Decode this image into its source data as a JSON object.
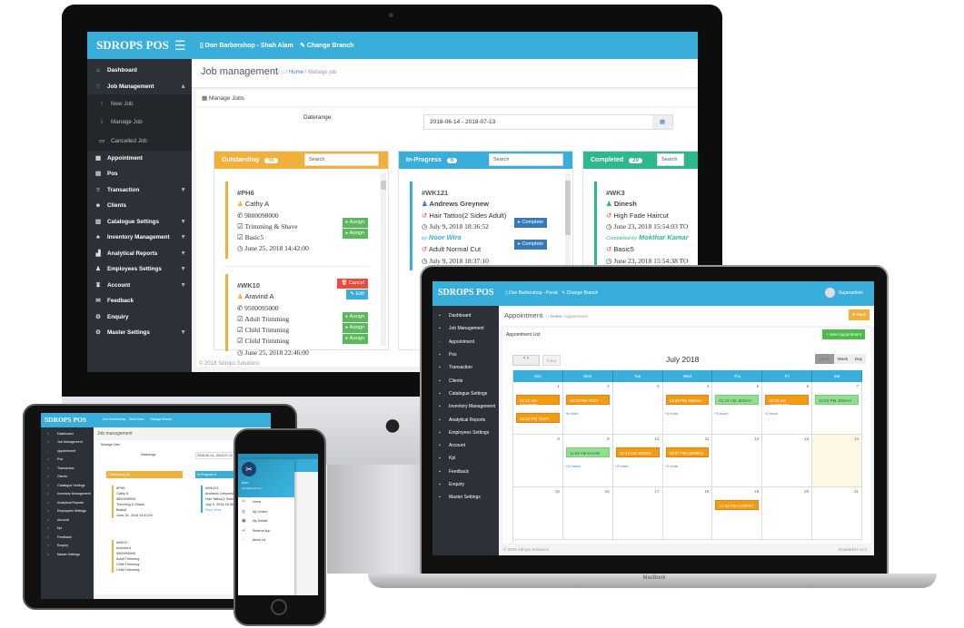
{
  "brand": "SDROPS POS",
  "imac": {
    "branch": "Don Barbershop - Shah Alam",
    "change_branch": "Change Branch",
    "page_title": "Job management",
    "breadcrumb": {
      "home": "Home",
      "current": "Manage job"
    },
    "panel_title": "Manage Jobs",
    "daterange_label": "Daterange:",
    "daterange_value": "2018-06-14 - 2018-07-13",
    "footer": "© 2018 Sdrops Solutions",
    "sidebar": [
      {
        "label": "Dashboard",
        "icon": "home-icon",
        "g": "⌂"
      },
      {
        "label": "Job Management",
        "icon": "list-icon",
        "g": "≡",
        "caret": "▲"
      },
      {
        "label": "New Job",
        "icon": "list-icon",
        "g": "⁞",
        "sub": true
      },
      {
        "label": "Manage Job",
        "icon": "list-icon",
        "g": "⁞",
        "sub": true
      },
      {
        "label": "Cancelled Job",
        "icon": "calendar-icon",
        "g": "▭",
        "sub": true
      },
      {
        "label": "Appointment",
        "icon": "grid-icon",
        "g": "▦"
      },
      {
        "label": "Pos",
        "icon": "calculator-icon",
        "g": "▤"
      },
      {
        "label": "Transaction",
        "icon": "list-icon",
        "g": "≡",
        "caret": "▼"
      },
      {
        "label": "Clients",
        "icon": "users-icon",
        "g": "☻"
      },
      {
        "label": "Catalogue Settings",
        "icon": "book-icon",
        "g": "▥",
        "caret": "▼"
      },
      {
        "label": "Inventory Management",
        "icon": "cubes-icon",
        "g": "♣",
        "caret": "▼"
      },
      {
        "label": "Analytical Reports",
        "icon": "chart-icon",
        "g": "▟",
        "caret": "▼"
      },
      {
        "label": "Employees Settings",
        "icon": "user-icon",
        "g": "♟",
        "caret": "▼"
      },
      {
        "label": "Account",
        "icon": "bank-icon",
        "g": "♜",
        "caret": "▼"
      },
      {
        "label": "Feedback",
        "icon": "comments-icon",
        "g": "✉"
      },
      {
        "label": "Enquiry",
        "icon": "gear-icon",
        "g": "⚙"
      },
      {
        "label": "Master Settings",
        "icon": "gear-icon",
        "g": "⚙",
        "caret": "▼"
      }
    ],
    "columns": {
      "outstanding": {
        "title": "Outstanding",
        "count": "66",
        "search": "Search",
        "color": "#f0b03a"
      },
      "inprogress": {
        "title": "In-Progress",
        "count": "6",
        "search": "Search",
        "color": "#3aaedb"
      },
      "completed": {
        "title": "Completed",
        "count": "29",
        "search": "Search",
        "color": "#2eb88e"
      }
    },
    "jobs": {
      "ph6": {
        "id": "#PH6",
        "name": "Cathy A",
        "phone": "9800098000",
        "services": [
          "Trimming & Shave",
          "Basic5"
        ],
        "time": "June 25, 2018 14:42:00"
      },
      "wk10": {
        "id": "#WK10",
        "name": "Aravind A",
        "phone": "9500095000",
        "services": [
          "Adult Trimming",
          "Child Trimming",
          "Child Trimming"
        ],
        "time": "June 25, 2018 22:46:00"
      },
      "wk121": {
        "id": "#WK121",
        "name": "Andrews Greynew",
        "service1": "Hair Tattoo(2 Sides Adult)",
        "time1": "July 9, 2018 18:36:52",
        "by_prefix": "by",
        "by": "Noor Wira",
        "service2": "Adult Normal Cut",
        "time2": "July 9, 2018 18:37:10"
      },
      "wk3": {
        "id": "#WK3",
        "name": "Dinesh",
        "service1": "High Fade Haircut",
        "time1": "June 23, 2018 15:54:03 TO",
        "by_prefix": "Completed by",
        "by": "Mokthar Kamar",
        "service2": "Basic5",
        "time2": "June 23, 2018 15:54:38 TO"
      }
    },
    "buttons": {
      "assign": "▸ Assign",
      "complete": "▸ Complete",
      "cancel": "🗑 Cancel",
      "edit": "✎ Edit"
    }
  },
  "laptop": {
    "branch": "Don Barbershop - Perak",
    "change_branch": "Change Branch",
    "user": "Superadmin",
    "page_title": "Appointment",
    "breadcrumb": {
      "home": "Home",
      "current": "Appointment"
    },
    "back": "Back",
    "panel_title": "Appointment List",
    "new_appointment": "+ New Appointment",
    "today": "Today",
    "month_title": "July 2018",
    "views": [
      "Month",
      "Week",
      "Day"
    ],
    "weekdays": [
      "Sun",
      "Mon",
      "Tue",
      "Wed",
      "Thu",
      "Fri",
      "Sat"
    ],
    "footer": "© 2018 Sdrops Solutions",
    "version": "Donbarber v1.0",
    "model_label": "MacBook",
    "sidebar": [
      "Dashboard",
      "Job Management",
      "Appointment",
      "Pos",
      "Transaction",
      "Clients",
      "Catalogue Settings",
      "Inventory Management",
      "Analytical Reports",
      "Employees Settings",
      "Account",
      "Kpi",
      "Feedback",
      "Enquiry",
      "Master Settings"
    ],
    "calendar": {
      "weeks": [
        [
          1,
          2,
          3,
          4,
          5,
          6,
          7
        ],
        [
          8,
          9,
          10,
          11,
          12,
          13,
          14
        ],
        [
          15,
          16,
          17,
          18,
          19,
          20,
          21
        ]
      ],
      "today": 14,
      "events": [
        {
          "day": 1,
          "items": [
            {
              "text": "04:10 AM GOVINDA",
              "status": "pending"
            },
            {
              "text": "15:22 PM TEST",
              "status": "pending"
            }
          ]
        },
        {
          "day": 2,
          "items": [
            {
              "text": "15:23 PM TEST",
              "status": "pending"
            }
          ],
          "more": "+6 more"
        },
        {
          "day": 4,
          "items": [
            {
              "text": "13:32 PM JEMAH",
              "status": "pending"
            }
          ],
          "more": "+4 more"
        },
        {
          "day": 5,
          "items": [
            {
              "text": "01:15 AM JEMAH",
              "status": "done"
            }
          ],
          "more": "+5 more"
        },
        {
          "day": 6,
          "items": [
            {
              "text": "01:02 AM ANDREWS",
              "status": "pending"
            }
          ],
          "more": "+2 more"
        },
        {
          "day": 7,
          "items": [
            {
              "text": "12:53 PM JEMAH",
              "status": "done"
            }
          ]
        },
        {
          "day": 9,
          "items": [
            {
              "text": "11:58 AM KAVIN",
              "status": "done"
            }
          ],
          "more": "+10 more"
        },
        {
          "day": 10,
          "items": [
            {
              "text": "10:14 AM JEMAH",
              "status": "pending"
            }
          ],
          "more": "+2 more"
        },
        {
          "day": 11,
          "items": [
            {
              "text": "18:07 PM ADMINS",
              "status": "pending"
            }
          ],
          "more": "+2 more"
        },
        {
          "day": 19,
          "items": [
            {
              "text": "17:43 PM CARPET",
              "status": "pending"
            }
          ]
        }
      ],
      "colors": {
        "pending": "#f39c12",
        "done": "#8ee08e",
        "header": "#3aaedb"
      }
    }
  },
  "phone": {
    "user_name": "Arun",
    "user_email": "arun@gmail.com",
    "menu": [
      {
        "label": "Home",
        "icon": "scissors-icon",
        "g": "✂"
      },
      {
        "label": "My Orders",
        "icon": "orders-icon",
        "g": "◎"
      },
      {
        "label": "My Details",
        "icon": "details-icon",
        "g": "▣"
      },
      {
        "label": "Referral App",
        "icon": "share-icon",
        "g": "⋖"
      },
      {
        "label": "About Us",
        "icon": "info-icon",
        "g": "◌"
      }
    ]
  }
}
